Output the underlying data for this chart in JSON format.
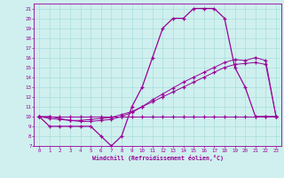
{
  "xlabel": "Windchill (Refroidissement éolien,°C)",
  "bg_color": "#cff0ee",
  "grid_color": "#aadddd",
  "line_color": "#990099",
  "xlim": [
    -0.5,
    23.5
  ],
  "ylim": [
    7,
    21.5
  ],
  "xticks": [
    0,
    1,
    2,
    3,
    4,
    5,
    6,
    7,
    8,
    9,
    10,
    11,
    12,
    13,
    14,
    15,
    16,
    17,
    18,
    19,
    20,
    21,
    22,
    23
  ],
  "yticks": [
    7,
    8,
    9,
    10,
    11,
    12,
    13,
    14,
    15,
    16,
    17,
    18,
    19,
    20,
    21
  ],
  "hours": [
    0,
    1,
    2,
    3,
    4,
    5,
    6,
    7,
    8,
    9,
    10,
    11,
    12,
    13,
    14,
    15,
    16,
    17,
    18,
    19,
    20,
    21,
    22,
    23
  ],
  "temp": [
    10,
    9,
    9,
    9,
    9,
    9,
    8,
    7,
    8,
    11,
    13,
    16,
    19,
    20,
    20,
    21,
    21,
    21,
    20,
    15,
    13,
    10,
    10,
    10
  ],
  "line2": [
    10,
    10,
    10,
    10,
    10,
    10,
    10,
    10,
    10,
    10,
    10,
    10,
    10,
    10,
    10,
    10,
    10,
    10,
    10,
    10,
    10,
    10,
    10,
    10
  ],
  "line3": [
    10,
    10,
    9.8,
    9.6,
    9.6,
    9.7,
    9.8,
    9.9,
    10.2,
    10.5,
    11.0,
    11.5,
    12.0,
    12.5,
    13.0,
    13.5,
    14.0,
    14.5,
    15.0,
    15.3,
    15.4,
    15.5,
    15.3,
    10
  ],
  "line4": [
    10,
    9.8,
    9.7,
    9.6,
    9.5,
    9.5,
    9.6,
    9.7,
    10.0,
    10.4,
    11.0,
    11.7,
    12.3,
    12.9,
    13.5,
    14.0,
    14.5,
    15.0,
    15.5,
    15.8,
    15.7,
    16.0,
    15.7,
    10
  ]
}
